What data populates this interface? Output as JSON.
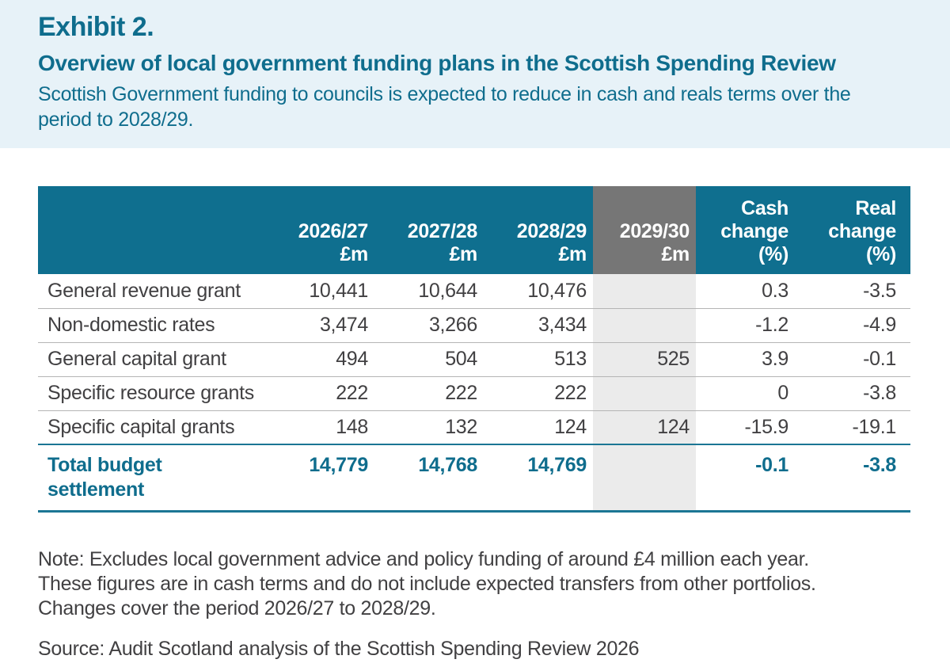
{
  "colors": {
    "teal": "#0f6f8f",
    "teal_text": "#0f6d8d",
    "header_gray": "#767676",
    "column_gray": "#ebebeb",
    "band_blue": "#e7f2f8",
    "body_text": "#414042"
  },
  "header": {
    "exhibit_label": "Exhibit 2.",
    "title": "Overview of local government funding plans in the Scottish Spending Review",
    "subtitle": "Scottish Government funding to councils is expected to reduce in cash and reals terms over the period to 2028/29."
  },
  "table": {
    "column_headers": [
      {
        "lines": [
          "2026/27",
          "£m"
        ]
      },
      {
        "lines": [
          "2027/28",
          "£m"
        ]
      },
      {
        "lines": [
          "2028/29",
          "£m"
        ]
      },
      {
        "lines": [
          "2029/30",
          "£m"
        ]
      },
      {
        "lines": [
          "Cash",
          "change",
          "(%)"
        ]
      },
      {
        "lines": [
          "Real",
          "change",
          "(%)"
        ]
      }
    ],
    "rows": [
      {
        "label": "General revenue grant",
        "values": [
          "10,441",
          "10,644",
          "10,476",
          "",
          "0.3",
          "-3.5"
        ]
      },
      {
        "label": "Non-domestic rates",
        "values": [
          "3,474",
          "3,266",
          "3,434",
          "",
          "-1.2",
          "-4.9"
        ]
      },
      {
        "label": "General capital grant",
        "values": [
          "494",
          "504",
          "513",
          "525",
          "3.9",
          "-0.1"
        ]
      },
      {
        "label": "Specific resource grants",
        "values": [
          "222",
          "222",
          "222",
          "",
          "0",
          "-3.8"
        ]
      },
      {
        "label": "Specific capital grants",
        "values": [
          "148",
          "132",
          "124",
          "124",
          "-15.9",
          "-19.1"
        ]
      }
    ],
    "total_row": {
      "label": "Total budget settlement",
      "values": [
        "14,779",
        "14,768",
        "14,769",
        "",
        "-0.1",
        "-3.8"
      ]
    }
  },
  "notes": {
    "lines": [
      "Note: Excludes local government advice and policy funding of around £4 million each year.",
      "These figures are in cash terms and do not include expected transfers from other portfolios.",
      "Changes cover the period 2026/27 to 2028/29."
    ]
  },
  "source": "Source: Audit Scotland analysis of the Scottish Spending Review 2026"
}
